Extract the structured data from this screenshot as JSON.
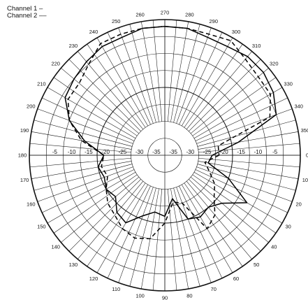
{
  "chart_data": {
    "type": "polar-line",
    "legend": [
      {
        "label": "Channel 1 –",
        "style": "solid"
      },
      {
        "label": "Channel 2 ––",
        "style": "dashed"
      }
    ],
    "radial_axis": {
      "range_db": [
        -40,
        0
      ],
      "ring_step_db": 5,
      "tick_labels": [
        "-5",
        "-10",
        "-15",
        "-20",
        "-25",
        "-30",
        "-35"
      ]
    },
    "angular_axis": {
      "step_deg": 10,
      "direction": "clockwise",
      "zero_at": "right",
      "tick_labels": [
        "0",
        "10",
        "20",
        "30",
        "40",
        "50",
        "60",
        "70",
        "80",
        "90",
        "100",
        "110",
        "120",
        "130",
        "140",
        "150",
        "160",
        "170",
        "180",
        "190",
        "200",
        "210",
        "220",
        "230",
        "240",
        "250",
        "260",
        "270",
        "280",
        "290",
        "300",
        "310",
        "320",
        "330",
        "340",
        "350"
      ]
    },
    "grid": true,
    "series": [
      {
        "name": "Channel 1",
        "style": "solid",
        "angles": [
          0,
          10,
          20,
          30,
          40,
          50,
          60,
          70,
          80,
          90,
          100,
          110,
          120,
          130,
          140,
          150,
          160,
          170,
          180,
          190,
          200,
          210,
          220,
          230,
          240,
          250,
          260,
          270,
          280,
          290,
          300,
          310,
          320,
          330,
          340,
          350
        ],
        "values_db": [
          -26,
          -27,
          -20,
          -12,
          -18,
          -20,
          -19,
          -20,
          -27,
          -22,
          -23,
          -21,
          -17,
          -18,
          -21,
          -20,
          -21,
          -20,
          -22,
          -16,
          -10,
          -6,
          -5,
          -4,
          -3,
          -3,
          -2,
          -2,
          -2,
          -3,
          -3,
          -2,
          -2,
          -3,
          -5,
          -18
        ]
      },
      {
        "name": "Channel 2",
        "style": "dashed",
        "angles": [
          0,
          10,
          20,
          30,
          40,
          50,
          60,
          70,
          80,
          90,
          100,
          110,
          120,
          130,
          140,
          150,
          160,
          170,
          180,
          190,
          200,
          210,
          220,
          230,
          240,
          250,
          260,
          270,
          280,
          290,
          300,
          310,
          320,
          330,
          340,
          350
        ],
        "values_db": [
          -24,
          -28,
          -26,
          -23,
          -21,
          -17,
          -15,
          -25,
          -26,
          -20,
          -15,
          -14,
          -15,
          -17,
          -18,
          -20,
          -22,
          -21,
          -22,
          -15,
          -10,
          -7,
          -7,
          -5,
          -2,
          -2,
          -2,
          -2,
          -2,
          -2,
          -1,
          -3,
          -4,
          -4,
          -7,
          -24
        ]
      }
    ]
  }
}
